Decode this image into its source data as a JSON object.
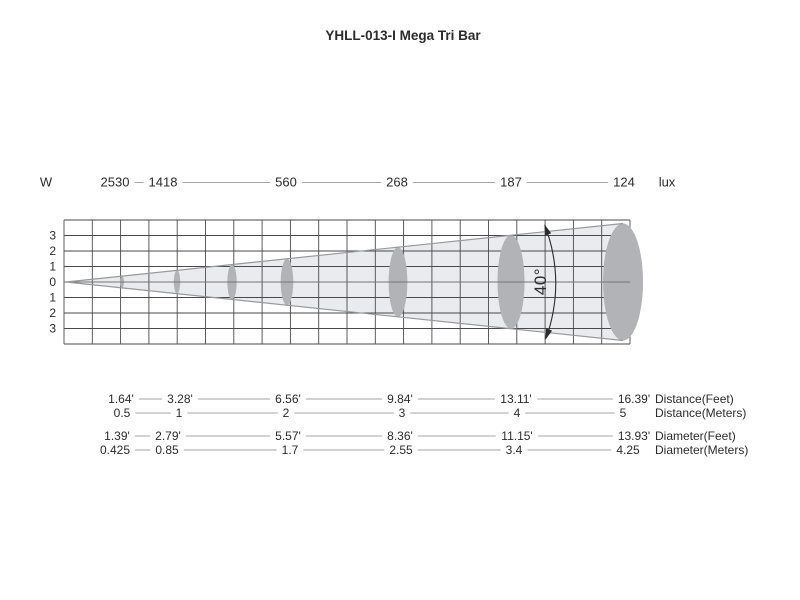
{
  "title": "YHLL-013-I Mega Tri Bar",
  "diagram": {
    "w_label": "W",
    "lux_unit_label": "lux",
    "lux_values": [
      "2530",
      "1418",
      "560",
      "268",
      "187",
      "124"
    ],
    "y_axis_labels": [
      "3",
      "2",
      "1",
      "0",
      "1",
      "2",
      "3"
    ],
    "beam_angle_label": "40°"
  },
  "measurement_rows": [
    {
      "id": "distance-feet",
      "label": "Distance(Feet)",
      "values": [
        "1.64'",
        "3.28'",
        "6.56'",
        "9.84'",
        "13.11'",
        "16.39'"
      ]
    },
    {
      "id": "distance-meters",
      "label": "Distance(Meters)",
      "values": [
        "0.5",
        "1",
        "2",
        "3",
        "4",
        "5"
      ]
    },
    {
      "id": "diameter-feet",
      "label": "Diameter(Feet)",
      "values": [
        "1.39'",
        "2.79'",
        "5.57'",
        "8.36'",
        "11.15'",
        "13.93'"
      ]
    },
    {
      "id": "diameter-meters",
      "label": "Diameter(Meters)",
      "values": [
        "0.425",
        "0.85",
        "1.7",
        "2.55",
        "3.4",
        "4.25"
      ]
    }
  ],
  "colors": {
    "text": "#2b2b2d",
    "grid_line": "#4a4a4d",
    "leader_line": "#a4a6a8",
    "cone_fill": "#eaebee",
    "cone_edge": "#97999c",
    "ellipse_fill": "#b1b3b6",
    "center_line": "#737577"
  },
  "chart_data": {
    "type": "table",
    "title": "YHLL-013-I Mega Tri Bar",
    "beam_angle_degrees": 40,
    "x_label": "Distance (meters)",
    "x": [
      0.5,
      1,
      2,
      3,
      4,
      5
    ],
    "series": [
      {
        "name": "Illuminance (lux)",
        "values": [
          2530,
          1418,
          560,
          268,
          187,
          124
        ]
      },
      {
        "name": "Distance (feet)",
        "values": [
          1.64,
          3.28,
          6.56,
          9.84,
          13.11,
          16.39
        ]
      },
      {
        "name": "Distance (meters)",
        "values": [
          0.5,
          1,
          2,
          3,
          4,
          5
        ]
      },
      {
        "name": "Diameter (feet)",
        "values": [
          1.39,
          2.79,
          5.57,
          8.36,
          11.15,
          13.93
        ]
      },
      {
        "name": "Diameter (meters)",
        "values": [
          0.425,
          0.85,
          1.7,
          2.55,
          3.4,
          4.25
        ]
      }
    ],
    "grid": true,
    "beam_axis_tick_labels": [
      3,
      2,
      1,
      0,
      1,
      2,
      3
    ]
  }
}
